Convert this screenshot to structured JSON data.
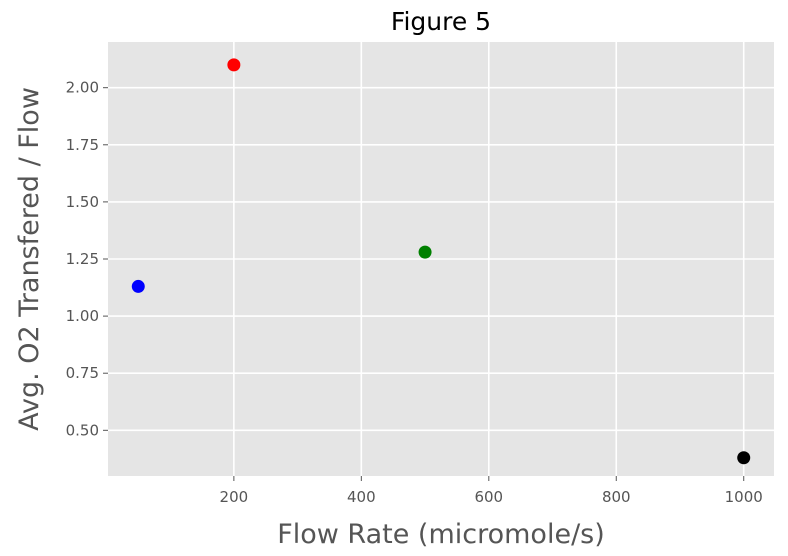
{
  "chart_data": {
    "type": "scatter",
    "title": "Figure 5",
    "xlabel": "Flow Rate (micromole/s)",
    "ylabel": "Avg. O2 Transfered / Flow",
    "xlim": [
      2.5,
      1047.5
    ],
    "ylim": [
      0.3,
      2.2
    ],
    "xticks": [
      200,
      400,
      600,
      800,
      1000
    ],
    "xtick_labels": [
      "200",
      "400",
      "600",
      "800",
      "1000"
    ],
    "yticks": [
      0.5,
      0.75,
      1.0,
      1.25,
      1.5,
      1.75,
      2.0
    ],
    "ytick_labels": [
      "0.50",
      "0.75",
      "1.00",
      "1.25",
      "1.50",
      "1.75",
      "2.00"
    ],
    "grid": true,
    "points": [
      {
        "x": 50,
        "y": 1.13,
        "color": "#0000ff"
      },
      {
        "x": 200,
        "y": 2.1,
        "color": "#ff0000"
      },
      {
        "x": 500,
        "y": 1.28,
        "color": "#008000"
      },
      {
        "x": 1000,
        "y": 0.38,
        "color": "#000000"
      }
    ],
    "colors": {
      "plot_background": "#e5e5e5",
      "grid": "#ffffff",
      "text": "#555555"
    }
  }
}
